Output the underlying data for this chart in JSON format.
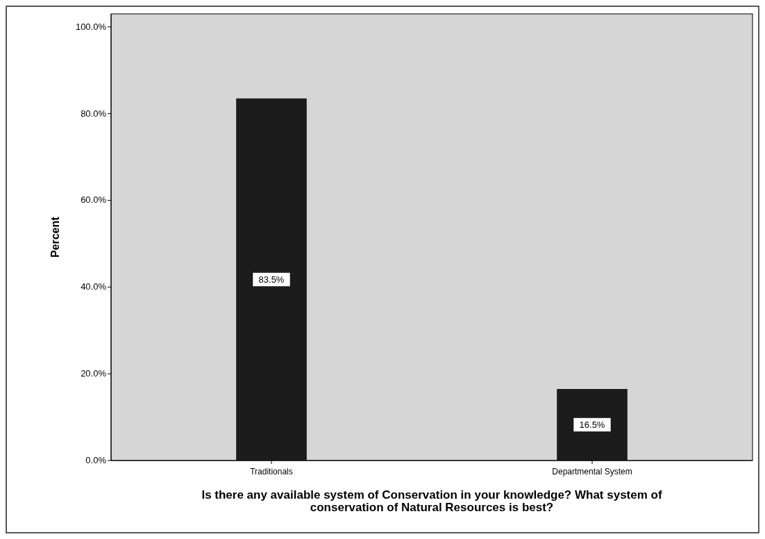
{
  "chart_data": {
    "type": "bar",
    "xlabel": "Is there any available system of Conservation in your knowledge? What system of conservation of Natural Resources is best?",
    "ylabel": "Percent",
    "categories": [
      "Traditionals",
      "Departmental System"
    ],
    "values": [
      83.5,
      16.5
    ],
    "value_labels": [
      "83.5%",
      "16.5%"
    ],
    "color": "#1c1c1c",
    "ylim": [
      0,
      103
    ],
    "yticks": [
      {
        "value": 0,
        "label": "0.0%"
      },
      {
        "value": 20,
        "label": "20.0%"
      },
      {
        "value": 40,
        "label": "40.0%"
      },
      {
        "value": 60,
        "label": "60.0%"
      },
      {
        "value": 80,
        "label": "80.0%"
      },
      {
        "value": 100,
        "label": "100.0%"
      }
    ],
    "grid": false
  }
}
